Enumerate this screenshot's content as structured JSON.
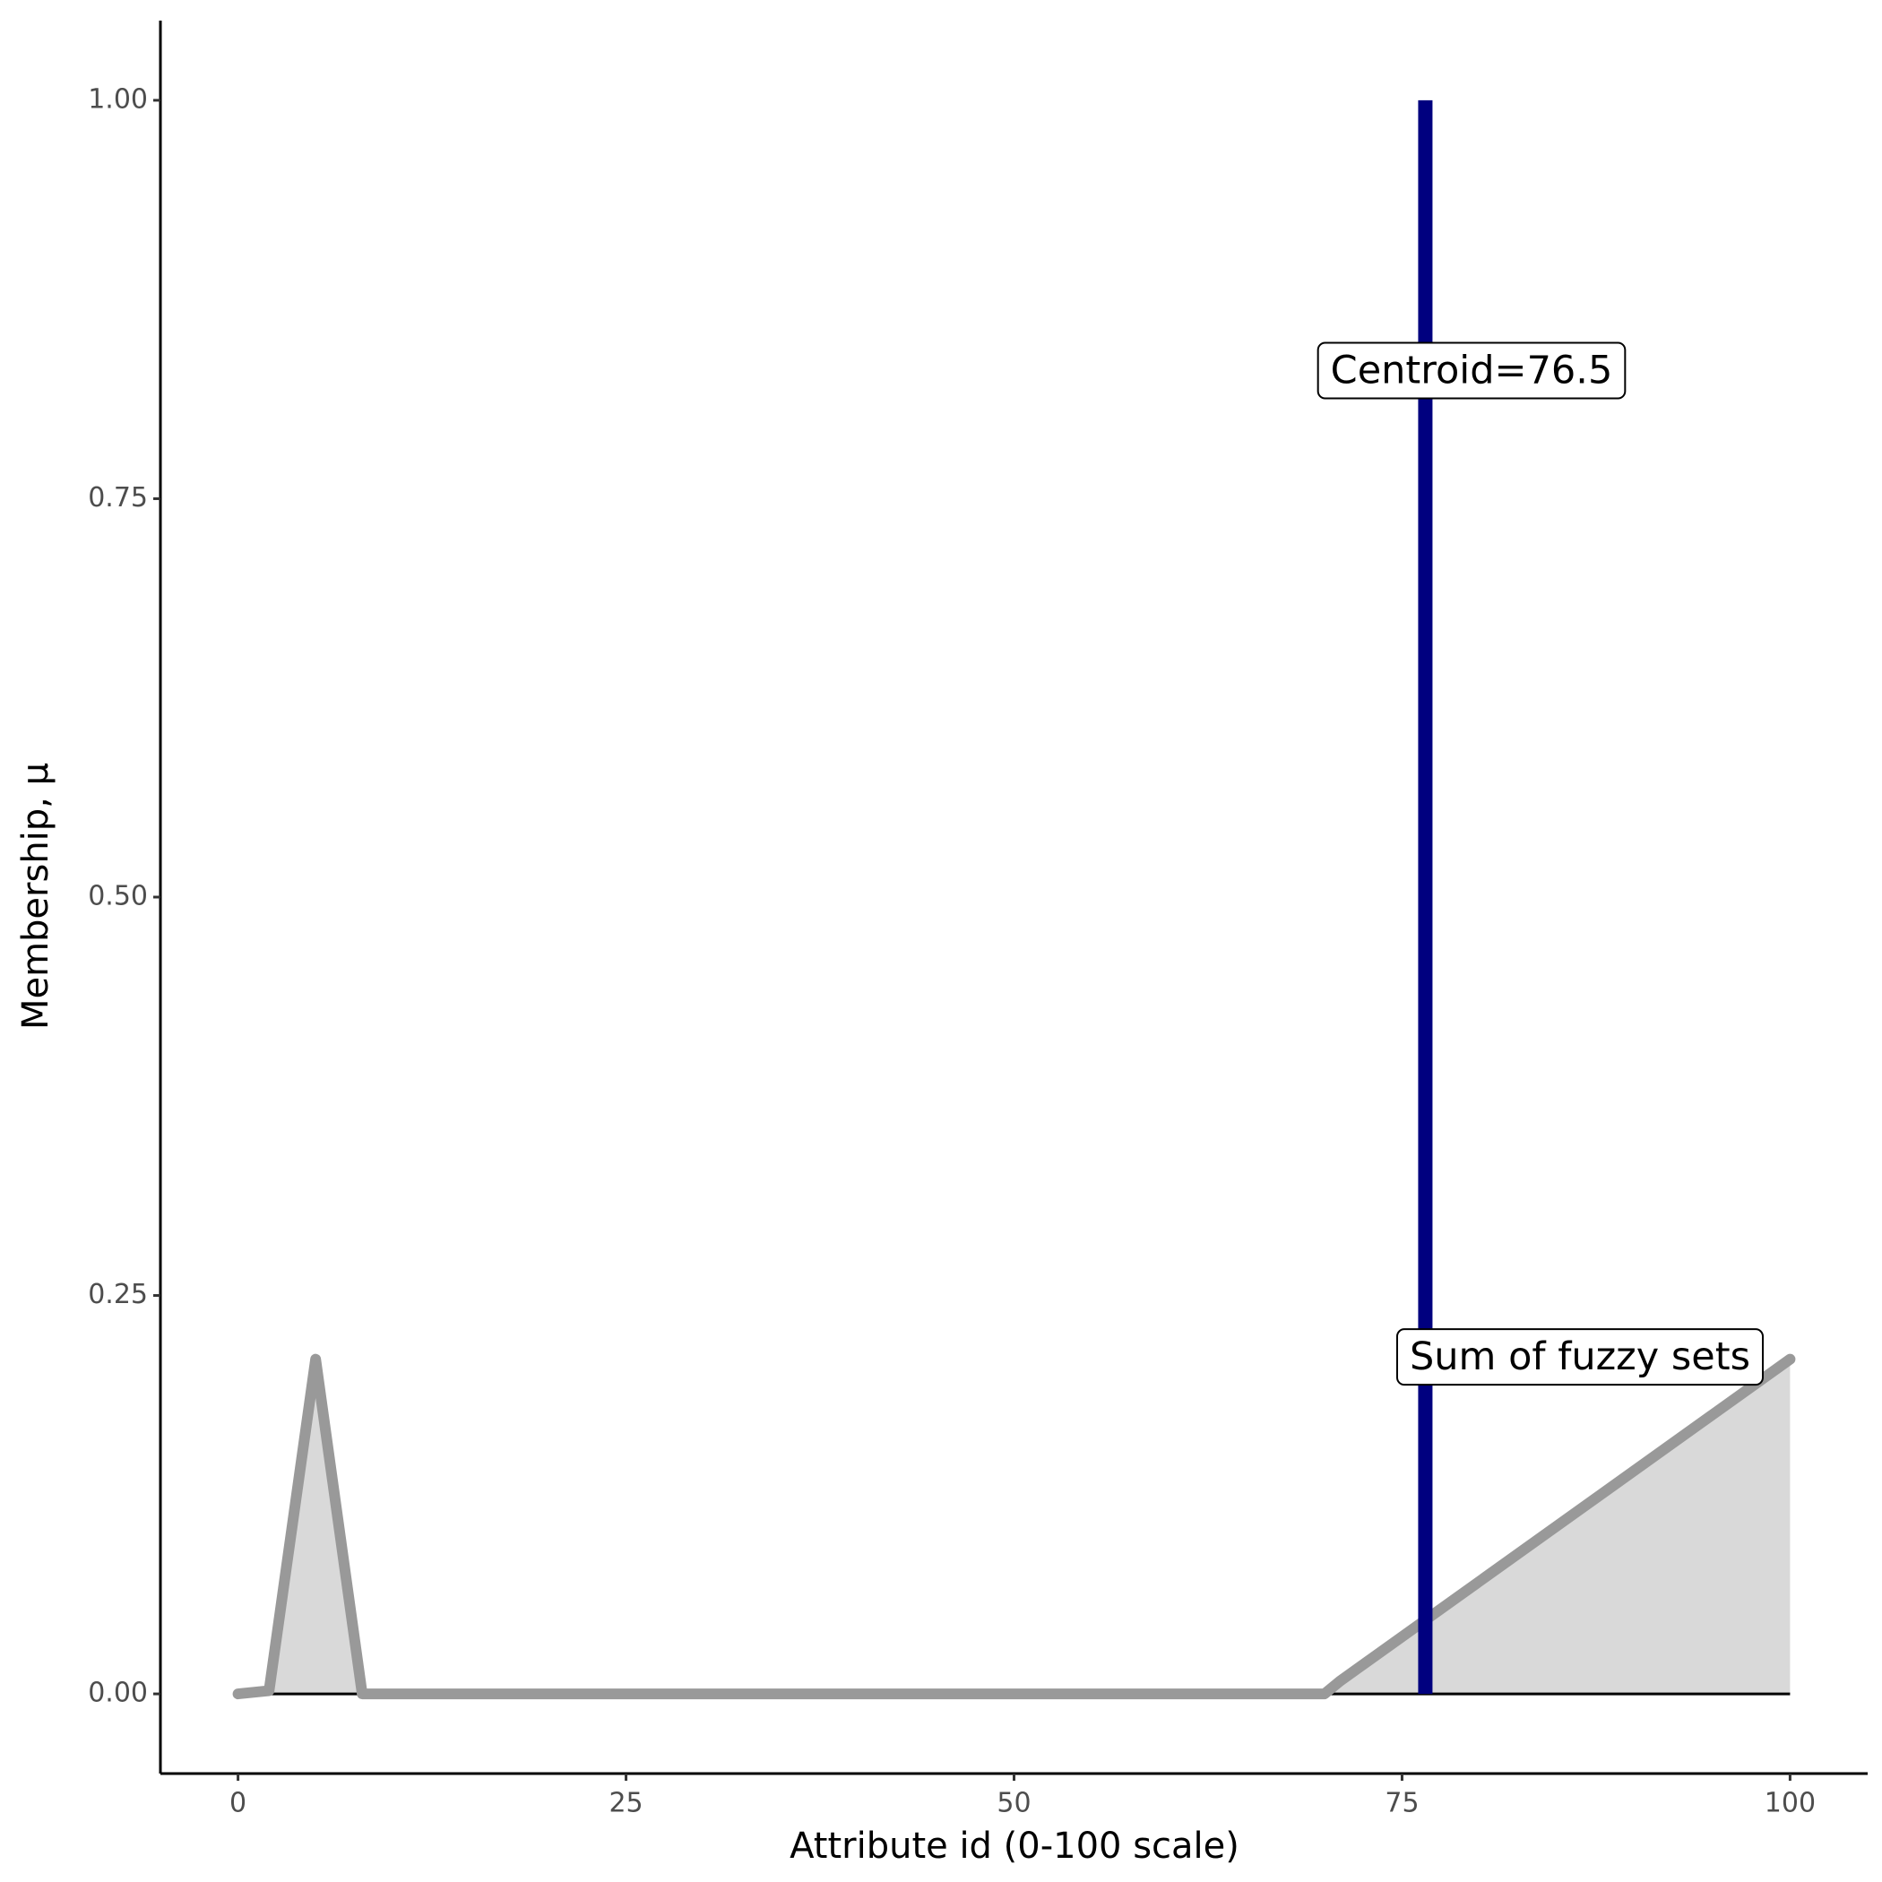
{
  "chart_data": {
    "type": "line",
    "x_label": "Attribute id (0-100 scale)",
    "y_label": "Membership, μ",
    "series": [
      {
        "name": "Sum of fuzzy sets",
        "color": "#999999",
        "fill": "#d9d9d9",
        "x": [
          0,
          2,
          5,
          8,
          70,
          71,
          100
        ],
        "values": [
          0,
          0.002,
          0.21,
          0,
          0,
          0.008,
          0.21
        ]
      }
    ],
    "centroid": {
      "x": 76.5,
      "ymax": 1,
      "label": "Centroid=76.5",
      "color": "#00007f"
    },
    "xlim": [
      -5,
      105
    ],
    "ylim": [
      -0.05,
      1.05
    ],
    "xticks": [
      0,
      25,
      50,
      75,
      100
    ],
    "yticks": [
      {
        "value": 0,
        "label": "0.00"
      },
      {
        "value": 0.25,
        "label": "0.25"
      },
      {
        "value": 0.5,
        "label": "0.50"
      },
      {
        "value": 0.75,
        "label": "0.75"
      },
      {
        "value": 1,
        "label": "1.00"
      }
    ]
  }
}
